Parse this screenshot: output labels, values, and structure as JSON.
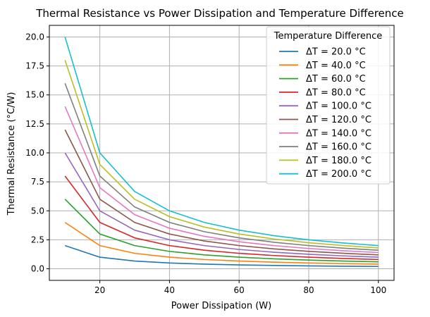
{
  "chart_data": {
    "type": "line",
    "title": "Thermal Resistance vs Power Dissipation and Temperature Difference",
    "xlabel": "Power Dissipation (W)",
    "ylabel": "Thermal Resistance (°C/W)",
    "xlim": [
      5.5,
      104.5
    ],
    "ylim": [
      -1.0,
      21.0
    ],
    "xticks": [
      20,
      40,
      60,
      80,
      100
    ],
    "xtick_labels": [
      "20",
      "40",
      "60",
      "80",
      "100"
    ],
    "yticks": [
      0.0,
      2.5,
      5.0,
      7.5,
      10.0,
      12.5,
      15.0,
      17.5,
      20.0
    ],
    "ytick_labels": [
      "0.0",
      "2.5",
      "5.0",
      "7.5",
      "10.0",
      "12.5",
      "15.0",
      "17.5",
      "20.0"
    ],
    "grid": true,
    "legend_title": "Temperature Difference",
    "legend_position": "top-right",
    "x": [
      10,
      20,
      30,
      40,
      50,
      60,
      70,
      80,
      90,
      100
    ],
    "series": [
      {
        "name": "ΔT = 20.0 °C",
        "color": "#1f77b4",
        "values": [
          2.0,
          1.0,
          0.667,
          0.5,
          0.4,
          0.333,
          0.286,
          0.25,
          0.222,
          0.2
        ]
      },
      {
        "name": "ΔT = 40.0 °C",
        "color": "#ff7f0e",
        "values": [
          4.0,
          2.0,
          1.333,
          1.0,
          0.8,
          0.667,
          0.571,
          0.5,
          0.444,
          0.4
        ]
      },
      {
        "name": "ΔT = 60.0 °C",
        "color": "#2ca02c",
        "values": [
          6.0,
          3.0,
          2.0,
          1.5,
          1.2,
          1.0,
          0.857,
          0.75,
          0.667,
          0.6
        ]
      },
      {
        "name": "ΔT = 80.0 °C",
        "color": "#d62728",
        "values": [
          8.0,
          4.0,
          2.667,
          2.0,
          1.6,
          1.333,
          1.143,
          1.0,
          0.889,
          0.8
        ]
      },
      {
        "name": "ΔT = 100.0 °C",
        "color": "#9467bd",
        "values": [
          10.0,
          5.0,
          3.333,
          2.5,
          2.0,
          1.667,
          1.429,
          1.25,
          1.111,
          1.0
        ]
      },
      {
        "name": "ΔT = 120.0 °C",
        "color": "#8c564b",
        "values": [
          12.0,
          6.0,
          4.0,
          3.0,
          2.4,
          2.0,
          1.714,
          1.5,
          1.333,
          1.2
        ]
      },
      {
        "name": "ΔT = 140.0 °C",
        "color": "#e377c2",
        "values": [
          14.0,
          7.0,
          4.667,
          3.5,
          2.8,
          2.333,
          2.0,
          1.75,
          1.556,
          1.4
        ]
      },
      {
        "name": "ΔT = 160.0 °C",
        "color": "#7f7f7f",
        "values": [
          16.0,
          8.0,
          5.333,
          4.0,
          3.2,
          2.667,
          2.286,
          2.0,
          1.778,
          1.6
        ]
      },
      {
        "name": "ΔT = 180.0 °C",
        "color": "#bcbd22",
        "values": [
          18.0,
          9.0,
          6.0,
          4.5,
          3.6,
          3.0,
          2.571,
          2.25,
          2.0,
          1.8
        ]
      },
      {
        "name": "ΔT = 200.0 °C",
        "color": "#17becf",
        "values": [
          20.0,
          10.0,
          6.667,
          5.0,
          4.0,
          3.333,
          2.857,
          2.5,
          2.222,
          2.0
        ]
      }
    ]
  }
}
